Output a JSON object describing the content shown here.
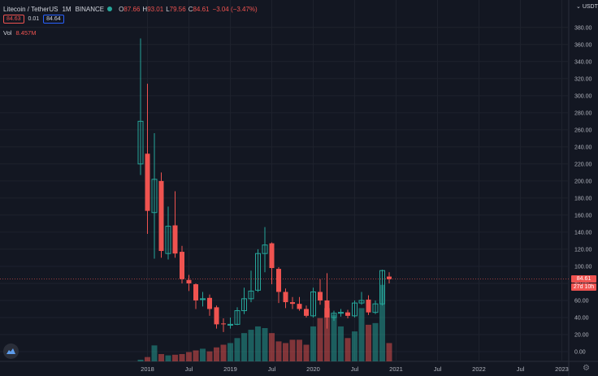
{
  "legend": {
    "symbol": "Litecoin / TetherUS",
    "interval": "1M",
    "exchange": "BINANCE",
    "open_label": "O",
    "open": "87.66",
    "high_label": "H",
    "high": "93.01",
    "low_label": "L",
    "low": "79.56",
    "close_label": "C",
    "close": "84.61",
    "change": "−3.04 (−3.47%)"
  },
  "quote": {
    "sell": "84.63",
    "spread": "0.01",
    "buy": "84.64"
  },
  "volume": {
    "label": "Vol",
    "value": "8.457M"
  },
  "axis": {
    "currency": "USDT"
  },
  "price_tag": {
    "price": "84.61",
    "countdown": "27d 10h"
  },
  "colors": {
    "up": "#26a69a",
    "down": "#ef5350",
    "background": "#131722",
    "grid": "#1e222d"
  },
  "icons": {
    "logo": "tradingview-logo-icon",
    "settings": "gear-icon"
  },
  "chart_data": {
    "type": "candlestick",
    "symbol": "Litecoin / TetherUS",
    "interval": "1M",
    "ylim": [
      0,
      380
    ],
    "y_ticks": [
      "0.00",
      "20.00",
      "40.00",
      "60.00",
      "80.00",
      "100.00",
      "120.00",
      "140.00",
      "160.00",
      "180.00",
      "200.00",
      "220.00",
      "240.00",
      "260.00",
      "280.00",
      "300.00",
      "320.00",
      "340.00",
      "360.00",
      "380.00"
    ],
    "x_ticks": [
      "2018",
      "Jul",
      "2019",
      "Jul",
      "2020",
      "Jul",
      "2021",
      "Jul",
      "2022",
      "Jul",
      "2023"
    ],
    "x_tick_months": [
      0,
      6,
      12,
      18,
      24,
      30,
      36,
      42,
      48,
      54,
      60
    ],
    "candles": [
      {
        "m": -1,
        "o": 220,
        "h": 367,
        "l": 207,
        "c": 270
      },
      {
        "m": 0,
        "o": 232,
        "h": 314,
        "l": 138,
        "c": 165
      },
      {
        "m": 1,
        "o": 163,
        "h": 256,
        "l": 109,
        "c": 202
      },
      {
        "m": 2,
        "o": 200,
        "h": 210,
        "l": 110,
        "c": 118
      },
      {
        "m": 3,
        "o": 115,
        "h": 170,
        "l": 108,
        "c": 147
      },
      {
        "m": 4,
        "o": 148,
        "h": 188,
        "l": 110,
        "c": 115
      },
      {
        "m": 5,
        "o": 117,
        "h": 124,
        "l": 80,
        "c": 85
      },
      {
        "m": 6,
        "o": 84,
        "h": 90,
        "l": 71,
        "c": 80
      },
      {
        "m": 7,
        "o": 79,
        "h": 80,
        "l": 50,
        "c": 60
      },
      {
        "m": 8,
        "o": 61,
        "h": 70,
        "l": 53,
        "c": 62
      },
      {
        "m": 9,
        "o": 63,
        "h": 67,
        "l": 42,
        "c": 50
      },
      {
        "m": 10,
        "o": 52,
        "h": 54,
        "l": 27,
        "c": 32
      },
      {
        "m": 11,
        "o": 33,
        "h": 39,
        "l": 23,
        "c": 32
      },
      {
        "m": 12,
        "o": 31,
        "h": 40,
        "l": 27,
        "c": 32
      },
      {
        "m": 13,
        "o": 32,
        "h": 52,
        "l": 31,
        "c": 48
      },
      {
        "m": 14,
        "o": 48,
        "h": 75,
        "l": 44,
        "c": 62
      },
      {
        "m": 15,
        "o": 62,
        "h": 95,
        "l": 58,
        "c": 71
      },
      {
        "m": 16,
        "o": 72,
        "h": 120,
        "l": 70,
        "c": 115
      },
      {
        "m": 17,
        "o": 115,
        "h": 146,
        "l": 93,
        "c": 125
      },
      {
        "m": 18,
        "o": 127,
        "h": 128,
        "l": 79,
        "c": 98
      },
      {
        "m": 19,
        "o": 97,
        "h": 99,
        "l": 57,
        "c": 70
      },
      {
        "m": 20,
        "o": 70,
        "h": 74,
        "l": 51,
        "c": 58
      },
      {
        "m": 21,
        "o": 58,
        "h": 64,
        "l": 50,
        "c": 56
      },
      {
        "m": 22,
        "o": 56,
        "h": 64,
        "l": 48,
        "c": 50
      },
      {
        "m": 23,
        "o": 50,
        "h": 54,
        "l": 40,
        "c": 42
      },
      {
        "m": 24,
        "o": 42,
        "h": 75,
        "l": 40,
        "c": 70
      },
      {
        "m": 25,
        "o": 70,
        "h": 85,
        "l": 55,
        "c": 60
      },
      {
        "m": 26,
        "o": 60,
        "h": 92,
        "l": 27,
        "c": 40
      },
      {
        "m": 27,
        "o": 40,
        "h": 48,
        "l": 36,
        "c": 45
      },
      {
        "m": 28,
        "o": 45,
        "h": 50,
        "l": 41,
        "c": 46
      },
      {
        "m": 29,
        "o": 46,
        "h": 49,
        "l": 39,
        "c": 42
      },
      {
        "m": 30,
        "o": 42,
        "h": 60,
        "l": 40,
        "c": 57
      },
      {
        "m": 31,
        "o": 57,
        "h": 70,
        "l": 55,
        "c": 60
      },
      {
        "m": 32,
        "o": 61,
        "h": 66,
        "l": 43,
        "c": 46
      },
      {
        "m": 33,
        "o": 46,
        "h": 60,
        "l": 44,
        "c": 56
      },
      {
        "m": 34,
        "o": 56,
        "h": 96,
        "l": 54,
        "c": 95
      },
      {
        "m": 35,
        "o": 88,
        "h": 93,
        "l": 80,
        "c": 85
      }
    ],
    "volume": [
      {
        "m": -1,
        "v": 0.5
      },
      {
        "m": 0,
        "v": 1.3
      },
      {
        "m": 1,
        "v": 4.8
      },
      {
        "m": 2,
        "v": 2.2
      },
      {
        "m": 3,
        "v": 1.8
      },
      {
        "m": 4,
        "v": 2.0
      },
      {
        "m": 5,
        "v": 2.2
      },
      {
        "m": 6,
        "v": 2.8
      },
      {
        "m": 7,
        "v": 3.3
      },
      {
        "m": 8,
        "v": 3.8
      },
      {
        "m": 9,
        "v": 3.0
      },
      {
        "m": 10,
        "v": 4.2
      },
      {
        "m": 11,
        "v": 5.0
      },
      {
        "m": 12,
        "v": 5.5
      },
      {
        "m": 13,
        "v": 7.0
      },
      {
        "m": 14,
        "v": 8.5
      },
      {
        "m": 15,
        "v": 9.5
      },
      {
        "m": 16,
        "v": 10.5
      },
      {
        "m": 17,
        "v": 10.0
      },
      {
        "m": 18,
        "v": 8.5
      },
      {
        "m": 19,
        "v": 6.0
      },
      {
        "m": 20,
        "v": 5.5
      },
      {
        "m": 21,
        "v": 6.5
      },
      {
        "m": 22,
        "v": 6.5
      },
      {
        "m": 23,
        "v": 5.0
      },
      {
        "m": 24,
        "v": 10.5
      },
      {
        "m": 25,
        "v": 13.0
      },
      {
        "m": 26,
        "v": 16.0
      },
      {
        "m": 27,
        "v": 14.0
      },
      {
        "m": 28,
        "v": 10.5
      },
      {
        "m": 29,
        "v": 7.0
      },
      {
        "m": 30,
        "v": 9.0
      },
      {
        "m": 31,
        "v": 16.0
      },
      {
        "m": 32,
        "v": 11.0
      },
      {
        "m": 33,
        "v": 11.5
      },
      {
        "m": 34,
        "v": 23.0
      },
      {
        "m": 35,
        "v": 5.5
      }
    ]
  }
}
